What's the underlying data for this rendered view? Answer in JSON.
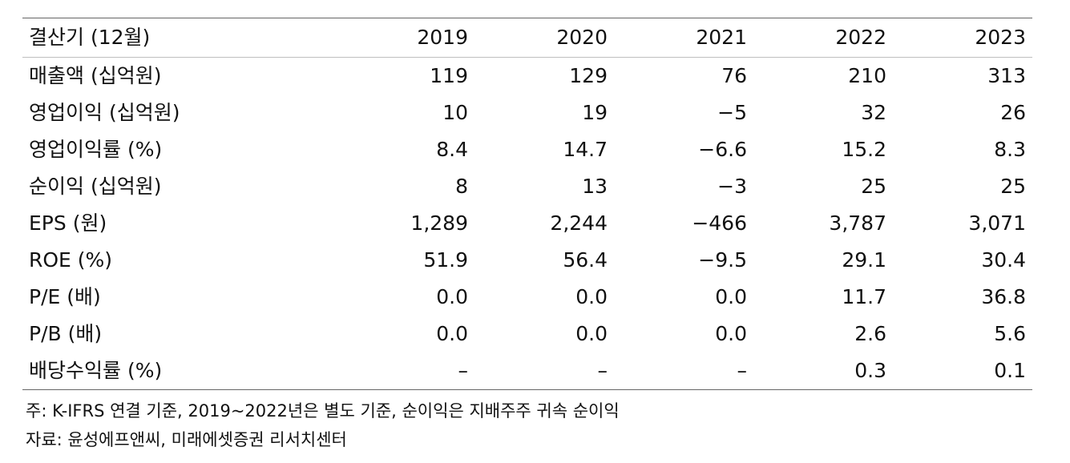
{
  "table": {
    "header_label": "결산기 (12월)",
    "years": [
      "2019",
      "2020",
      "2021",
      "2022",
      "2023"
    ],
    "rows": [
      {
        "label": "매출액 (십억원)",
        "values": [
          "119",
          "129",
          "76",
          "210",
          "313"
        ]
      },
      {
        "label": "영업이익 (십억원)",
        "values": [
          "10",
          "19",
          "−5",
          "32",
          "26"
        ]
      },
      {
        "label": "영업이익률 (%)",
        "values": [
          "8.4",
          "14.7",
          "−6.6",
          "15.2",
          "8.3"
        ]
      },
      {
        "label": "순이익 (십억원)",
        "values": [
          "8",
          "13",
          "−3",
          "25",
          "25"
        ]
      },
      {
        "label": "EPS (원)",
        "values": [
          "1,289",
          "2,244",
          "−466",
          "3,787",
          "3,071"
        ]
      },
      {
        "label": "ROE (%)",
        "values": [
          "51.9",
          "56.4",
          "−9.5",
          "29.1",
          "30.4"
        ]
      },
      {
        "label": "P/E (배)",
        "values": [
          "0.0",
          "0.0",
          "0.0",
          "11.7",
          "36.8"
        ]
      },
      {
        "label": "P/B (배)",
        "values": [
          "0.0",
          "0.0",
          "0.0",
          "2.6",
          "5.6"
        ]
      },
      {
        "label": "배당수익률 (%)",
        "values": [
          "–",
          "–",
          "–",
          "0.3",
          "0.1"
        ]
      }
    ]
  },
  "notes": {
    "footnote": "주: K-IFRS 연결 기준, 2019~2022년은 별도 기준, 순이익은 지배주주 귀속 순이익",
    "source": "자료: 윤성에프앤씨, 미래에셋증권 리서치센터"
  }
}
